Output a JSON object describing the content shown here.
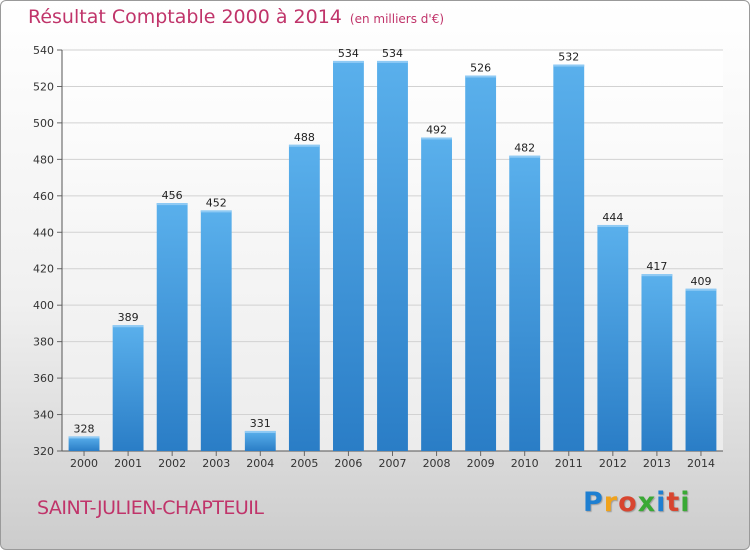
{
  "title": "Résultat Comptable 2000 à 2014",
  "unit_note": "(en milliers d'€)",
  "commune": "SAINT-JULIEN-CHAPTEUIL",
  "brand": "Proxiti",
  "colors": {
    "title": "#c0346a",
    "bar_top": "#5ab0ec",
    "bar_bottom": "#2a7dc6",
    "brand": [
      "#1e7fd1",
      "#f0a21b",
      "#d8452f",
      "#3aa935",
      "#1e7fd1",
      "#d8452f",
      "#3aa935"
    ]
  },
  "chart_data": {
    "type": "bar",
    "title": "Résultat Comptable 2000 à 2014",
    "subtitle": "(en milliers d'€)",
    "categories": [
      "2000",
      "2001",
      "2002",
      "2003",
      "2004",
      "2005",
      "2006",
      "2007",
      "2008",
      "2009",
      "2010",
      "2011",
      "2012",
      "2013",
      "2014"
    ],
    "values": [
      328,
      389,
      456,
      452,
      331,
      488,
      534,
      534,
      492,
      526,
      482,
      532,
      444,
      417,
      409
    ],
    "ylim": [
      320,
      540
    ],
    "yticks": [
      320,
      340,
      360,
      380,
      400,
      420,
      440,
      460,
      480,
      500,
      520,
      540
    ],
    "grid": true,
    "xlabel": "",
    "ylabel": ""
  }
}
